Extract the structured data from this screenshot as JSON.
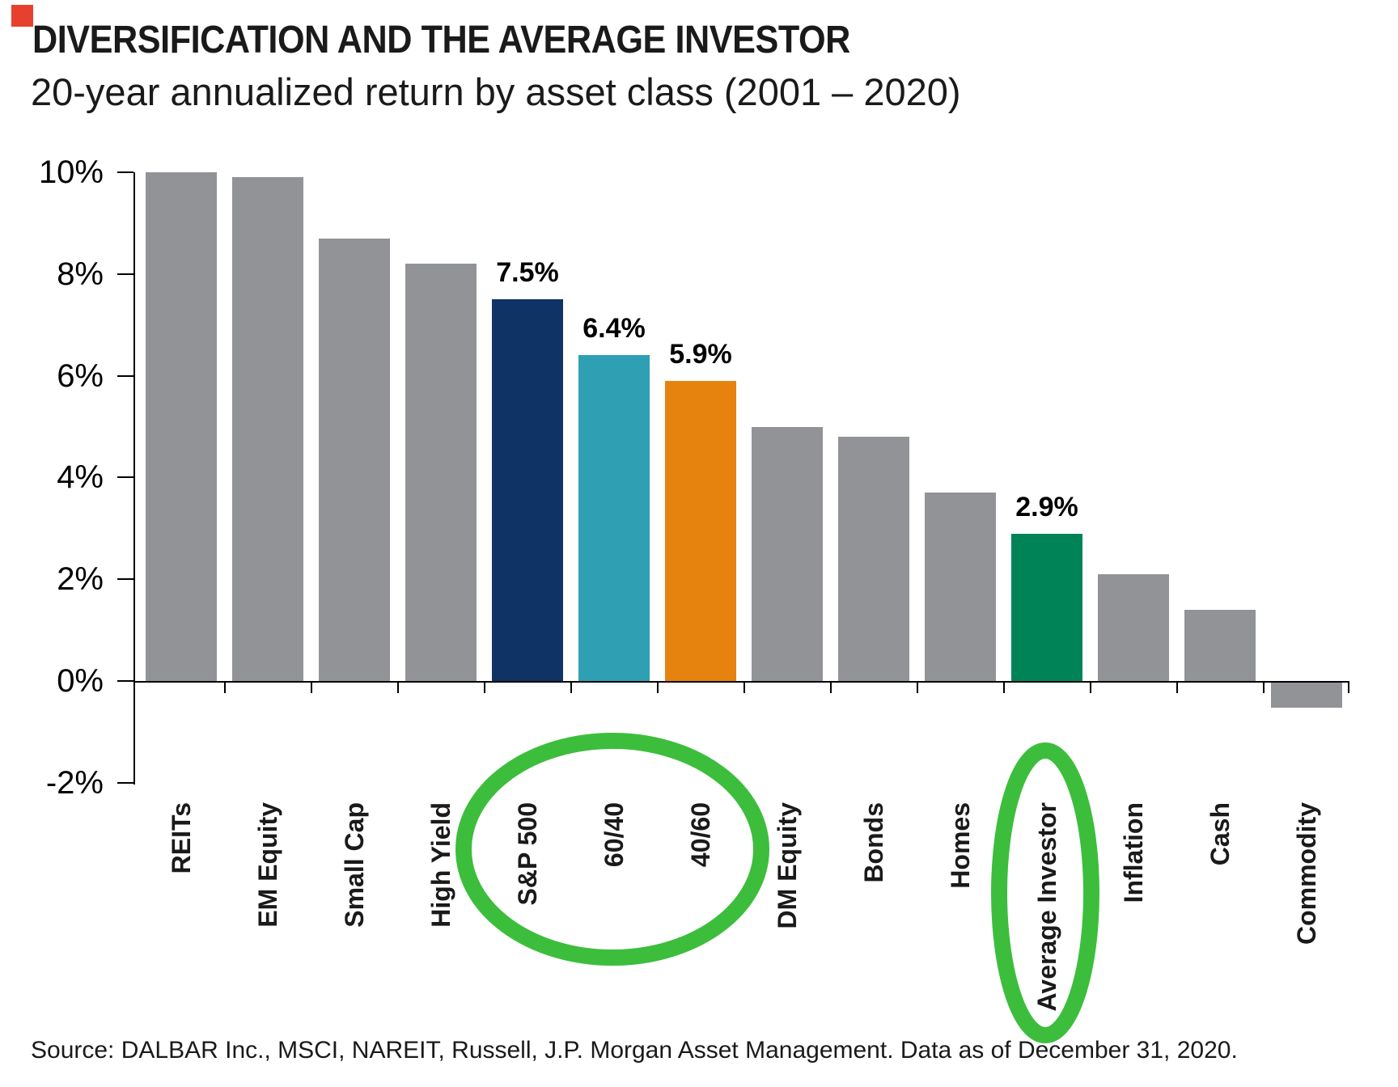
{
  "page": {
    "background": "#ffffff"
  },
  "brand_mark": {
    "color": "#e8402e"
  },
  "header": {
    "title": "DIVERSIFICATION AND THE AVERAGE INVESTOR",
    "subtitle": "20-year annualized return by asset class (2001 – 2020)"
  },
  "source_line": "Source: DALBAR Inc., MSCI, NAREIT, Russell, J.P. Morgan Asset Management. Data as of December 31, 2020.",
  "colors": {
    "bar_gray": "#919396",
    "bar_navy": "#0f3364",
    "bar_teal": "#2f9fb4",
    "bar_orange": "#e6820e",
    "bar_green": "#008457",
    "highlight_ring": "#3cbe3c",
    "axis": "#000000",
    "text": "#1a1a1a"
  },
  "chart_data": {
    "type": "bar",
    "title": "DIVERSIFICATION AND THE AVERAGE INVESTOR",
    "subtitle": "20-year annualized return by asset class (2001 – 2020)",
    "xlabel": "",
    "ylabel": "20-year annualized return (%)",
    "grid": false,
    "ylim": [
      -2,
      10
    ],
    "categories": [
      "REITs",
      "EM Equity",
      "Small Cap",
      "High Yield",
      "S&P 500",
      "60/40",
      "40/60",
      "DM Equity",
      "Bonds",
      "Homes",
      "Average Investor",
      "Inflation",
      "Cash",
      "Commodity"
    ],
    "values": [
      10.0,
      9.9,
      8.7,
      8.2,
      7.5,
      6.4,
      5.9,
      5.0,
      4.8,
      3.7,
      2.9,
      2.1,
      1.4,
      -0.5
    ],
    "bar_color_keys": [
      "bar_gray",
      "bar_gray",
      "bar_gray",
      "bar_gray",
      "bar_navy",
      "bar_teal",
      "bar_orange",
      "bar_gray",
      "bar_gray",
      "bar_gray",
      "bar_green",
      "bar_gray",
      "bar_gray",
      "bar_gray"
    ],
    "value_labels": [
      "",
      "",
      "",
      "",
      "7.5%",
      "6.4%",
      "5.9%",
      "",
      "",
      "",
      "2.9%",
      "",
      "",
      ""
    ],
    "y_axis": {
      "ticks": [
        {
          "label": "10%",
          "value": 10
        },
        {
          "label": "8%",
          "value": 8
        },
        {
          "label": "6%",
          "value": 6
        },
        {
          "label": "4%",
          "value": 4
        },
        {
          "label": "2%",
          "value": 2
        },
        {
          "label": "0%",
          "value": 0
        },
        {
          "label": "-2%",
          "value": -2
        }
      ]
    },
    "circled_groups": [
      {
        "name": "diversified-portfolios",
        "categories": [
          "S&P 500",
          "60/40",
          "40/60"
        ]
      },
      {
        "name": "average-investor",
        "categories": [
          "Average Investor"
        ]
      }
    ]
  }
}
